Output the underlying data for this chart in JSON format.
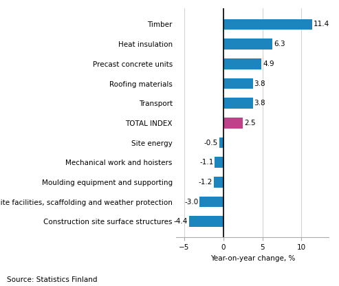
{
  "categories": [
    "Construction site surface structures",
    "Site facilities, scaffolding and weather protection",
    "Moulding equipment and supporting",
    "Mechanical work and hoisters",
    "Site energy",
    "TOTAL INDEX",
    "Transport",
    "Roofing materials",
    "Precast concrete units",
    "Heat insulation",
    "Timber"
  ],
  "values": [
    -4.4,
    -3.0,
    -1.2,
    -1.1,
    -0.5,
    2.5,
    3.8,
    3.8,
    4.9,
    6.3,
    11.4
  ],
  "bar_colors": [
    "#1d85be",
    "#1d85be",
    "#1d85be",
    "#1d85be",
    "#1d85be",
    "#c0408a",
    "#1d85be",
    "#1d85be",
    "#1d85be",
    "#1d85be",
    "#1d85be"
  ],
  "xlim": [
    -6,
    13.5
  ],
  "xticks": [
    -5,
    0,
    5,
    10
  ],
  "xlabel": "Year-on-year change, %",
  "source": "Source: Statistics Finland",
  "label_fontsize": 7.5,
  "source_fontsize": 7.5,
  "bar_height": 0.55
}
